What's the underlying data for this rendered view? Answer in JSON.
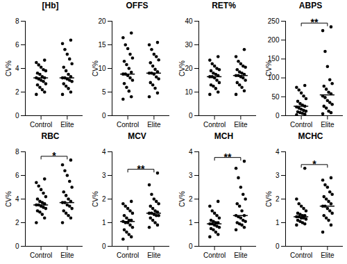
{
  "chart_data": [
    {
      "type": "scatter",
      "title": "[Hb]",
      "ylabel": "CV%",
      "categories": [
        "Control",
        "Elite"
      ],
      "color": "#000000",
      "groups": [
        [
          1.8,
          2.0,
          2.2,
          2.4,
          2.6,
          2.7,
          2.9,
          3.0,
          3.1,
          3.2,
          3.2,
          3.3,
          3.5,
          3.6,
          3.8,
          3.9,
          4.1,
          4.3,
          4.5,
          4.7
        ],
        [
          1.8,
          2.0,
          2.3,
          2.5,
          2.7,
          2.9,
          3.0,
          3.1,
          3.2,
          3.2,
          3.3,
          3.5,
          3.8,
          4.1,
          4.4,
          4.8,
          5.2,
          5.6,
          6.1,
          6.4
        ]
      ],
      "medians": [
        3.2,
        3.2
      ],
      "ylim": [
        0,
        8
      ],
      "yticks": [
        0,
        2,
        4,
        6,
        8
      ]
    },
    {
      "type": "scatter",
      "title": "OFFS",
      "ylabel": "CV%",
      "categories": [
        "Control",
        "Elite"
      ],
      "color": "#000000",
      "groups": [
        [
          3.5,
          4.0,
          5.2,
          6.0,
          6.8,
          7.5,
          8.0,
          8.5,
          8.8,
          8.8,
          9.2,
          10.0,
          10.8,
          11.5,
          12.2,
          13.0,
          14.2,
          15.0,
          16.5,
          17.5
        ],
        [
          4.0,
          4.8,
          5.8,
          6.5,
          7.0,
          7.8,
          8.2,
          8.8,
          9.0,
          9.0,
          9.3,
          9.8,
          10.5,
          11.2,
          11.8,
          12.5,
          13.0,
          14.0,
          15.0,
          15.5
        ]
      ],
      "medians": [
        8.8,
        9.0
      ],
      "ylim": [
        0,
        20
      ],
      "yticks": [
        0,
        5,
        10,
        15,
        20
      ]
    },
    {
      "type": "scatter",
      "title": "RET%",
      "ylabel": "CV%",
      "categories": [
        "Control",
        "Elite"
      ],
      "color": "#000000",
      "groups": [
        [
          9,
          10,
          11.5,
          12.5,
          13,
          14,
          15,
          16,
          16.5,
          16.5,
          17,
          17.5,
          18,
          19,
          19.5,
          20,
          21,
          22,
          23.5,
          25
        ],
        [
          9,
          10.5,
          12,
          13,
          14,
          15,
          16,
          16.5,
          17,
          17,
          17.5,
          18,
          18.5,
          19.5,
          20.5,
          21,
          22,
          23,
          25,
          28
        ]
      ],
      "medians": [
        16.5,
        17
      ],
      "ylim": [
        0,
        40
      ],
      "yticks": [
        0,
        10,
        20,
        30,
        40
      ]
    },
    {
      "type": "scatter",
      "title": "ABPS",
      "ylabel": "CV%",
      "categories": [
        "Control",
        "Elite"
      ],
      "color": "#000000",
      "groups": [
        [
          2,
          4,
          6,
          8,
          10,
          12,
          14,
          17,
          20,
          23,
          25,
          28,
          32,
          38,
          45,
          52,
          60,
          68,
          75,
          80
        ],
        [
          5,
          8,
          12,
          20,
          25,
          30,
          35,
          40,
          48,
          52,
          58,
          62,
          70,
          78,
          85,
          95,
          130,
          170,
          225,
          235
        ]
      ],
      "medians": [
        25,
        55
      ],
      "ylim": [
        0,
        250
      ],
      "yticks": [
        0,
        50,
        100,
        150,
        200,
        250
      ],
      "significance": "**"
    },
    {
      "type": "scatter",
      "title": "RBC",
      "ylabel": "CV%",
      "categories": [
        "Control",
        "Elite"
      ],
      "color": "#000000",
      "groups": [
        [
          2.0,
          2.4,
          2.7,
          2.9,
          3.0,
          3.2,
          3.3,
          3.4,
          3.5,
          3.5,
          3.6,
          3.7,
          3.8,
          4.0,
          4.2,
          4.5,
          4.8,
          5.1,
          5.4,
          5.7
        ],
        [
          2.0,
          2.4,
          2.6,
          2.8,
          3.0,
          3.2,
          3.4,
          3.5,
          3.7,
          3.7,
          3.8,
          4.0,
          4.3,
          4.6,
          5.0,
          5.5,
          6.0,
          6.4,
          6.9,
          7.3
        ]
      ],
      "medians": [
        3.5,
        3.7
      ],
      "ylim": [
        0,
        8
      ],
      "yticks": [
        0,
        2,
        4,
        6,
        8
      ],
      "significance": "*"
    },
    {
      "type": "scatter",
      "title": "MCV",
      "ylabel": "CV%",
      "categories": [
        "Control",
        "Elite"
      ],
      "color": "#000000",
      "groups": [
        [
          0.3,
          0.4,
          0.5,
          0.6,
          0.7,
          0.8,
          0.9,
          1.0,
          1.0,
          1.05,
          1.1,
          1.1,
          1.2,
          1.3,
          1.4,
          1.5,
          1.6,
          1.7,
          1.8,
          1.9
        ],
        [
          0.8,
          0.9,
          1.0,
          1.1,
          1.2,
          1.3,
          1.3,
          1.35,
          1.4,
          1.4,
          1.45,
          1.5,
          1.6,
          1.7,
          1.8,
          1.9,
          2.0,
          2.2,
          2.6,
          3.1
        ]
      ],
      "medians": [
        1.05,
        1.4
      ],
      "ylim": [
        0,
        4
      ],
      "yticks": [
        0,
        1,
        2,
        3,
        4
      ],
      "significance": "**"
    },
    {
      "type": "scatter",
      "title": "MCH",
      "ylabel": "CV%",
      "categories": [
        "Control",
        "Elite"
      ],
      "color": "#000000",
      "groups": [
        [
          0.4,
          0.5,
          0.6,
          0.7,
          0.75,
          0.8,
          0.85,
          0.9,
          0.95,
          0.95,
          1.0,
          1.0,
          1.05,
          1.1,
          1.2,
          1.3,
          1.4,
          1.5,
          1.7,
          1.9
        ],
        [
          0.7,
          0.8,
          0.9,
          0.95,
          1.0,
          1.05,
          1.1,
          1.2,
          1.25,
          1.3,
          1.3,
          1.5,
          1.7,
          1.8,
          2.0,
          2.2,
          2.5,
          2.9,
          3.3,
          3.6
        ]
      ],
      "medians": [
        0.95,
        1.3
      ],
      "ylim": [
        0,
        4
      ],
      "yticks": [
        0,
        1,
        2,
        3,
        4
      ],
      "significance": "**"
    },
    {
      "type": "scatter",
      "title": "MCHC",
      "ylabel": "CV%",
      "categories": [
        "Control",
        "Elite"
      ],
      "color": "#000000",
      "groups": [
        [
          0.9,
          0.95,
          1.0,
          1.05,
          1.1,
          1.15,
          1.2,
          1.2,
          1.25,
          1.25,
          1.3,
          1.3,
          1.35,
          1.4,
          1.5,
          1.6,
          1.7,
          1.8,
          2.0,
          3.3
        ],
        [
          0.6,
          0.9,
          1.1,
          1.2,
          1.3,
          1.4,
          1.5,
          1.6,
          1.7,
          1.7,
          1.8,
          1.9,
          2.0,
          2.1,
          2.2,
          2.3,
          2.5,
          2.6,
          2.8,
          2.9
        ]
      ],
      "medians": [
        1.25,
        1.7
      ],
      "ylim": [
        0,
        4
      ],
      "yticks": [
        0,
        1,
        2,
        3,
        4
      ],
      "significance": "*"
    }
  ]
}
